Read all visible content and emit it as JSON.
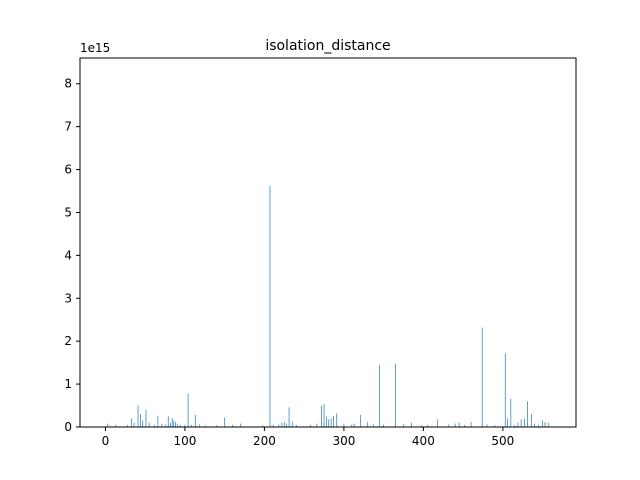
{
  "chart_data": {
    "type": "bar",
    "title": "isolation_distance",
    "xlabel": "",
    "ylabel": "",
    "y_offset_label": "1e15",
    "xlim": [
      -32,
      592
    ],
    "ylim": [
      0,
      8.6
    ],
    "x_ticks": [
      0,
      100,
      200,
      300,
      400,
      500
    ],
    "x_tick_labels": [
      "0",
      "100",
      "200",
      "300",
      "400",
      "500"
    ],
    "y_ticks": [
      0,
      1,
      2,
      3,
      4,
      5,
      6,
      7,
      8
    ],
    "y_tick_labels": [
      "0",
      "1",
      "2",
      "3",
      "4",
      "5",
      "6",
      "7",
      "8"
    ],
    "grid": false,
    "bar_color": "#1f77b4",
    "bar_width": 0.8,
    "x": [
      3,
      13,
      28,
      33,
      36,
      41,
      44,
      47,
      51,
      55,
      62,
      66,
      71,
      76,
      79,
      82,
      84,
      86,
      88,
      91,
      94,
      100,
      104,
      108,
      113,
      118,
      126,
      140,
      150,
      160,
      170,
      198,
      207,
      211,
      218,
      222,
      225,
      228,
      231,
      235,
      240,
      258,
      266,
      272,
      275,
      278,
      281,
      284,
      287,
      291,
      300,
      310,
      313,
      321,
      330,
      337,
      345,
      350,
      365,
      375,
      385,
      398,
      405,
      418,
      432,
      440,
      445,
      452,
      460,
      474,
      480,
      490,
      503,
      506,
      510,
      515,
      519,
      523,
      527,
      531,
      536,
      540,
      545,
      550,
      553,
      557
    ],
    "values": [
      0.08,
      0.05,
      0.05,
      0.2,
      0.1,
      0.5,
      0.3,
      0.15,
      0.4,
      0.1,
      0.05,
      0.25,
      0.08,
      0.06,
      0.25,
      0.1,
      0.2,
      0.15,
      0.12,
      0.08,
      0.05,
      0.05,
      0.78,
      0.05,
      0.28,
      0.06,
      0.03,
      0.04,
      0.22,
      0.05,
      0.08,
      0.04,
      5.62,
      0.05,
      0.06,
      0.1,
      0.12,
      0.08,
      0.46,
      0.12,
      0.05,
      0.05,
      0.08,
      0.5,
      0.54,
      0.24,
      0.18,
      0.2,
      0.25,
      0.32,
      0.08,
      0.06,
      0.08,
      0.28,
      0.12,
      0.06,
      1.45,
      0.05,
      1.48,
      0.06,
      0.1,
      0.04,
      0.05,
      0.18,
      0.06,
      0.08,
      0.1,
      0.05,
      0.12,
      2.32,
      0.06,
      0.04,
      1.72,
      0.2,
      0.66,
      0.05,
      0.1,
      0.18,
      0.2,
      0.6,
      0.3,
      0.08,
      0.05,
      0.15,
      0.12,
      0.1
    ]
  }
}
